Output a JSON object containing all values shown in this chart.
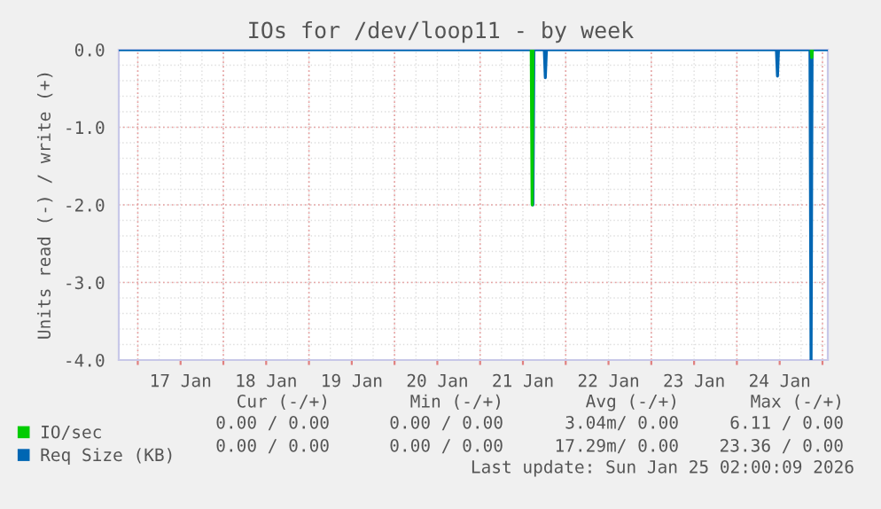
{
  "chart_data": {
    "type": "line",
    "title": "IOs for /dev/loop11 - by week",
    "ylabel": "Units read (-) / write (+)",
    "series": [
      {
        "name": "IO/sec",
        "color": "#00cc00",
        "x": [
          "2026-01-21T14:20",
          "2026-01-21T14:35",
          "2026-01-21T14:50",
          null,
          "2026-01-24T20:50",
          "2026-01-24T21:00",
          "2026-01-24T21:10"
        ],
        "values": [
          0,
          -2.0,
          0,
          null,
          0,
          -0.1,
          0
        ]
      },
      {
        "name": "Req Size (KB)",
        "color": "#0066b3",
        "x": [
          "2026-01-16T18:40",
          "2026-01-21T14:30",
          "2026-01-21T14:48",
          "2026-01-21T15:05",
          "2026-01-21T18:00",
          "2026-01-21T18:17",
          "2026-01-21T18:35",
          "2026-01-24T11:05",
          "2026-01-24T11:23",
          "2026-01-24T11:40",
          "2026-01-24T20:30",
          "2026-01-24T20:48",
          "2026-01-24T21:05",
          "2026-01-25T01:30"
        ],
        "values": [
          0,
          0,
          -2.0,
          0,
          0,
          -0.36,
          0,
          0,
          -0.34,
          0,
          0,
          -4.0,
          0,
          0
        ]
      }
    ],
    "xlim": [
      "2026-01-16T18:40",
      "2026-01-25T01:30"
    ],
    "xticks": [
      {
        "value": "2026-01-17T00:00",
        "label": null
      },
      {
        "value": "2026-01-17T12:00",
        "label": "17 Jan"
      },
      {
        "value": "2026-01-18T00:00",
        "label": null
      },
      {
        "value": "2026-01-18T12:00",
        "label": "18 Jan"
      },
      {
        "value": "2026-01-19T00:00",
        "label": null
      },
      {
        "value": "2026-01-19T12:00",
        "label": "19 Jan"
      },
      {
        "value": "2026-01-20T00:00",
        "label": null
      },
      {
        "value": "2026-01-20T12:00",
        "label": "20 Jan"
      },
      {
        "value": "2026-01-21T00:00",
        "label": null
      },
      {
        "value": "2026-01-21T12:00",
        "label": "21 Jan"
      },
      {
        "value": "2026-01-22T00:00",
        "label": null
      },
      {
        "value": "2026-01-22T12:00",
        "label": "22 Jan"
      },
      {
        "value": "2026-01-23T00:00",
        "label": null
      },
      {
        "value": "2026-01-23T12:00",
        "label": "23 Jan"
      },
      {
        "value": "2026-01-24T00:00",
        "label": null
      },
      {
        "value": "2026-01-24T12:00",
        "label": "24 Jan"
      },
      {
        "value": "2026-01-25T00:00",
        "label": null
      }
    ],
    "ylim": [
      -4.0,
      0.0
    ],
    "yticks": [
      {
        "value": 0,
        "label": "0.0"
      },
      {
        "value": -1,
        "label": "-1.0"
      },
      {
        "value": -2,
        "label": "-2.0"
      },
      {
        "value": -3,
        "label": "-3.0"
      },
      {
        "value": -4,
        "label": "-4.0"
      }
    ],
    "grid": true,
    "legend": "bottom left",
    "annotations": [
      "Cur (-/+)",
      "Min (-/+)",
      "Avg (-/+)",
      "Max (-/+)",
      "0.00 / 0.00",
      "0.00 / 0.00",
      "3.04m/ 0.00",
      "6.11 / 0.00",
      "0.00 / 0.00",
      "0.00 / 0.00",
      "17.29m/ 0.00",
      "23.36 / 0.00",
      "Last update: Sun Jan 25 02:00:09 2026"
    ]
  }
}
